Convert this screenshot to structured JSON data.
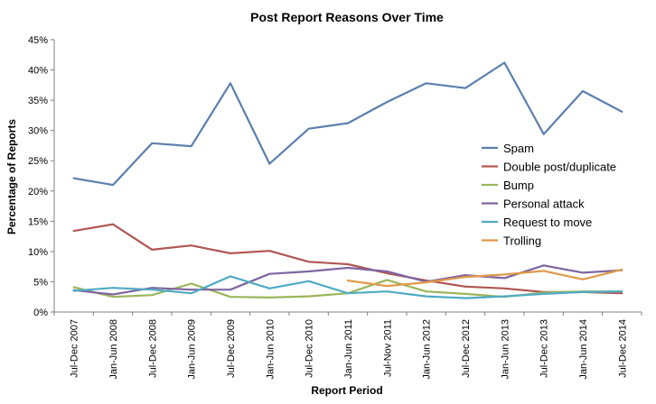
{
  "chart_data": {
    "type": "line",
    "title": "Post Report Reasons Over Time",
    "xlabel": "Report Period",
    "ylabel": "Percentage of Reports",
    "ylim": [
      0,
      45
    ],
    "y_ticks": [
      "0%",
      "5%",
      "10%",
      "15%",
      "20%",
      "25%",
      "30%",
      "35%",
      "40%",
      "45%"
    ],
    "grid": false,
    "legend_position": "right",
    "categories": [
      "Jul-Dec 2007",
      "Jan-Jun 2008",
      "Jul-Dec 2008",
      "Jan-Jun 2009",
      "Jul-Dec 2009",
      "Jan-Jun 2010",
      "Jul-Dec 2010",
      "Jan-Jun 2011",
      "Jul-Nov 2011",
      "Jan-Jun 2012",
      "Jul-Dec 2012",
      "Jan-Jun 2013",
      "Jul-Dec 2013",
      "Jan-Jun 2014",
      "Jul-Dec 2014"
    ],
    "series": [
      {
        "name": "Spam",
        "color": "#5b7fad",
        "values": [
          22.1,
          21.0,
          27.9,
          27.4,
          37.8,
          24.5,
          30.3,
          31.2,
          34.7,
          37.8,
          37.0,
          41.2,
          29.4,
          36.5,
          33.1
        ]
      },
      {
        "name": "Double post/duplicate",
        "color": "#b05652",
        "values": [
          13.4,
          14.5,
          10.3,
          11.0,
          9.7,
          10.1,
          8.3,
          7.9,
          6.4,
          5.2,
          4.2,
          3.9,
          3.3,
          3.3,
          3.1
        ]
      },
      {
        "name": "Bump",
        "color": "#9bb55b",
        "values": [
          4.1,
          2.5,
          2.8,
          4.7,
          2.5,
          2.4,
          2.6,
          3.1,
          5.3,
          3.4,
          3.0,
          2.5,
          3.2,
          3.4,
          3.4
        ]
      },
      {
        "name": "Personal attack",
        "color": "#7e65a0",
        "values": [
          3.6,
          2.9,
          4.0,
          3.7,
          3.7,
          6.3,
          6.7,
          7.3,
          6.7,
          5.0,
          6.1,
          5.6,
          7.7,
          6.5,
          6.9
        ]
      },
      {
        "name": "Request to move",
        "color": "#4fabc5",
        "values": [
          3.5,
          4.0,
          3.7,
          3.1,
          5.9,
          3.9,
          5.1,
          3.1,
          3.4,
          2.6,
          2.3,
          2.6,
          3.0,
          3.3,
          3.4
        ]
      },
      {
        "name": "Trolling",
        "color": "#e09a4b",
        "values": [
          null,
          null,
          null,
          null,
          null,
          null,
          null,
          5.2,
          4.3,
          4.9,
          5.8,
          6.2,
          6.8,
          5.4,
          7.0
        ]
      }
    ]
  }
}
